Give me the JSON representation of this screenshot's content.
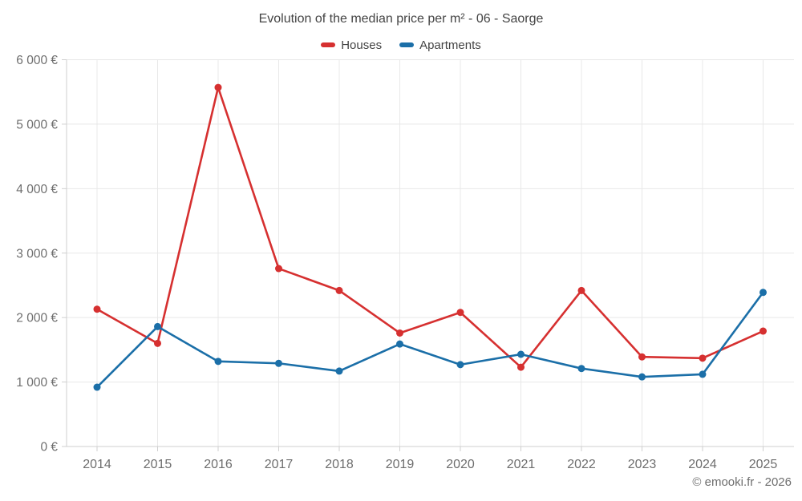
{
  "chart_data": {
    "type": "line",
    "title": "Evolution of the median price per m² - 06 - Saorge",
    "categories": [
      "2014",
      "2015",
      "2016",
      "2017",
      "2018",
      "2019",
      "2020",
      "2021",
      "2022",
      "2023",
      "2024",
      "2025"
    ],
    "series": [
      {
        "name": "Houses",
        "color": "#d63030",
        "values": [
          2130,
          1600,
          5570,
          2760,
          2420,
          1760,
          2080,
          1230,
          2420,
          1390,
          1370,
          1790
        ]
      },
      {
        "name": "Apartments",
        "color": "#1b6fa8",
        "values": [
          920,
          1860,
          1320,
          1290,
          1170,
          1590,
          1270,
          1430,
          1210,
          1080,
          1120,
          2390
        ]
      }
    ],
    "xlabel": "",
    "ylabel": "",
    "ylim": [
      0,
      6000
    ],
    "ytick_step": 1000,
    "ytick_labels": [
      "0 €",
      "1 000 €",
      "2 000 €",
      "3 000 €",
      "4 000 €",
      "5 000 €",
      "6 000 €"
    ],
    "grid": true,
    "legend_position": "top"
  },
  "footer": {
    "copyright": "© emooki.fr - 2026"
  },
  "colors": {
    "background": "#ffffff",
    "title_text": "#444444",
    "axis_text": "#6e6e6e",
    "gridline": "#e8e8e8",
    "axis_line": "#cfcfcf"
  }
}
